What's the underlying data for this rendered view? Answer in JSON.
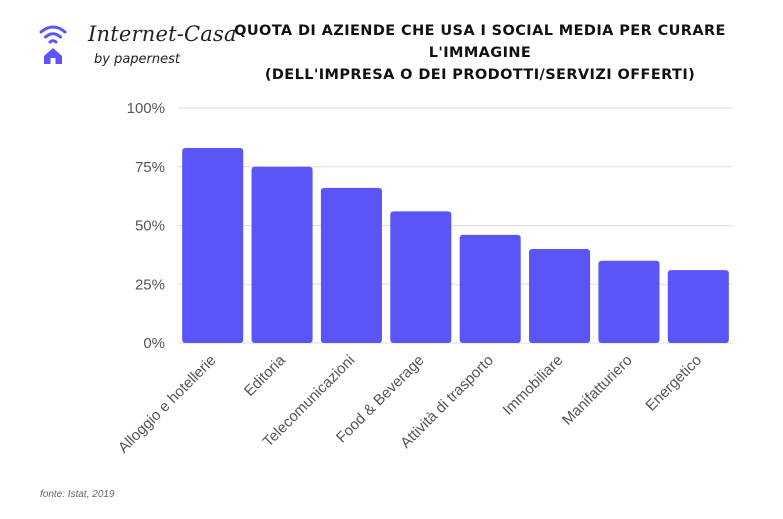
{
  "brand": {
    "name": "Internet-Casa",
    "tagline": "by papernest",
    "icon": "wifi-home-icon",
    "color": "#5B55F7"
  },
  "title_lines": [
    "QUOTA DI AZIENDE CHE USA I SOCIAL MEDIA PER CURARE",
    "L'IMMAGINE",
    "(DELL'IMPRESA O DEI PRODOTTI/SERVIZI OFFERTI)"
  ],
  "source": "fonte: Istat, 2019",
  "chart_data": {
    "type": "bar",
    "title": "QUOTA DI AZIENDE CHE USA I SOCIAL MEDIA PER CURARE L'IMMAGINE (DELL'IMPRESA O DEI PRODOTTI/SERVIZI OFFERTI)",
    "categories": [
      "Alloggio e hotellerie",
      "Editoria",
      "Telecomunicazioni",
      "Food  & Beverage",
      "Attività di trasporto",
      "Immobiliare",
      "Manifatturiero",
      "Energetico"
    ],
    "values": [
      83,
      75,
      66,
      56,
      46,
      40,
      35,
      31
    ],
    "ylim": [
      0,
      100
    ],
    "yticks": [
      0,
      25,
      50,
      75,
      100
    ],
    "ytick_labels": [
      "0%",
      "25%",
      "50%",
      "75%",
      "100%"
    ],
    "grid": true,
    "bar_color": "#5B55F7",
    "grid_color": "#DDDDDD"
  }
}
